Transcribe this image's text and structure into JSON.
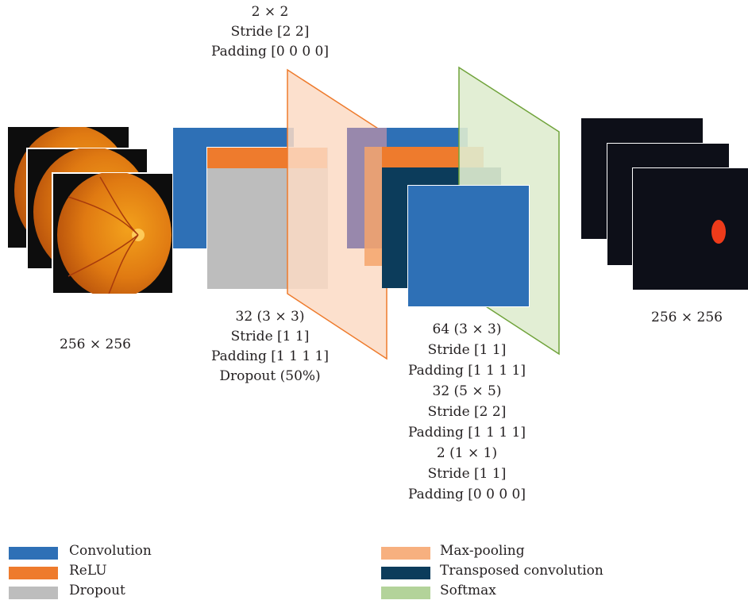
{
  "colors": {
    "convolution": "#2e70b6",
    "relu": "#ee7b2d",
    "dropout": "#bdbdbd",
    "maxpool_fill": "#fbdac4",
    "maxpool_edge": "#ee7b2d",
    "transposed": "#0c3c5b",
    "softmax_fill": "#dfeccf",
    "softmax_edge": "#70a33b",
    "output_bg": "#0d0f18",
    "segment": "#ee3b1a"
  },
  "input": {
    "size_label": "256 × 256",
    "image_icon": "retina-fundus-image"
  },
  "output": {
    "size_label": "256 × 256",
    "image_icon": "segmentation-mask-image"
  },
  "pool_params": [
    "2 × 2",
    "Stride [2 2]",
    "Padding [0 0 0 0]"
  ],
  "encoder_params": [
    "32 (3 × 3)",
    "Stride [1 1]",
    "Padding [1 1 1 1]",
    "Dropout (50%)"
  ],
  "decoder_params": [
    "64 (3 × 3)",
    "Stride [1 1]",
    "Padding [1 1 1 1]",
    "32 (5 × 5)",
    "Stride [2 2]",
    "Padding [1 1 1 1]",
    "2 (1 × 1)",
    "Stride [1 1]",
    "Padding [0 0 0 0]"
  ],
  "legend": {
    "left": [
      {
        "label": "Convolution",
        "color": "#2e70b6"
      },
      {
        "label": "ReLU",
        "color": "#ee7b2d"
      },
      {
        "label": "Dropout",
        "color": "#bdbdbd"
      }
    ],
    "right": [
      {
        "label": "Max-pooling",
        "color": "#f7b07f"
      },
      {
        "label": "Transposed convolution",
        "color": "#0c3c5b"
      },
      {
        "label": "Softmax",
        "color": "#b3d39a"
      }
    ]
  }
}
